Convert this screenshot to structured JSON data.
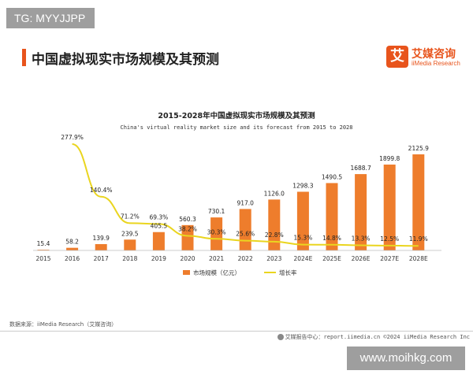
{
  "tag": "TG: MYYJJPP",
  "page_title": "中国虚拟现实市场规模及其预测",
  "logo": {
    "mark": "艾",
    "cn": "艾媒咨询",
    "en": "iiMedia Research"
  },
  "colors": {
    "bar": "#ee7d2c",
    "line": "#ead51f",
    "accent": "#e8541c"
  },
  "chart_data": {
    "type": "bar",
    "title": "2015-2028年中国虚拟现实市场规模及其预测",
    "subtitle": "China's virtual reality market size and its forecast from 2015 to 2028",
    "categories": [
      "2015",
      "2016",
      "2017",
      "2018",
      "2019",
      "2020",
      "2021",
      "2022",
      "2023",
      "2024E",
      "2025E",
      "2026E",
      "2027E",
      "2028E"
    ],
    "series": [
      {
        "name": "市场规模（亿元）",
        "kind": "bar",
        "values": [
          15.4,
          58.2,
          139.9,
          239.5,
          405.5,
          560.3,
          730.1,
          917.0,
          1126.0,
          1298.3,
          1490.5,
          1688.7,
          1899.8,
          2125.9
        ],
        "labels": [
          "15.4",
          "58.2",
          "139.9",
          "239.5",
          "405.5",
          "560.3",
          "730.1",
          "917.0",
          "1126.0",
          "1298.3",
          "1490.5",
          "1688.7",
          "1899.8",
          "2125.9"
        ]
      },
      {
        "name": "增长率",
        "kind": "line",
        "values": [
          null,
          277.9,
          140.4,
          71.2,
          69.3,
          38.2,
          30.3,
          25.6,
          22.8,
          15.3,
          14.8,
          13.3,
          12.5,
          11.9
        ],
        "labels": [
          "",
          "277.9%",
          "140.4%",
          "71.2%",
          "69.3%",
          "38.2%",
          "30.3%",
          "25.6%",
          "22.8%",
          "15.3%",
          "14.8%",
          "13.3%",
          "12.5%",
          "11.9%"
        ]
      }
    ],
    "grid": false,
    "legend": "bottom"
  },
  "source": "数据来源：iiMedia Research（艾媒咨询）",
  "footer": "艾媒报告中心：report.iimedia.cn  ©2024  iiMedia Research Inc",
  "watermark": "www.moihkg.com"
}
